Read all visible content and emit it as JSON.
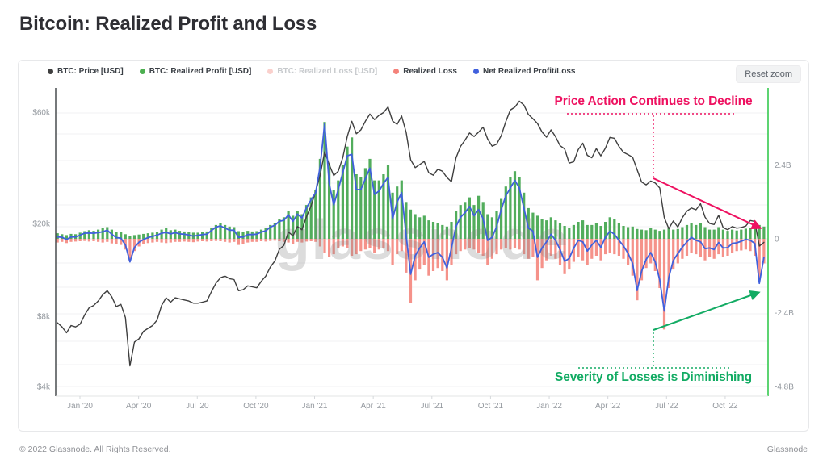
{
  "title": "Bitcoin: Realized Profit and Loss",
  "panel": {
    "reset_button_label": "Reset zoom"
  },
  "legend": {
    "items": [
      {
        "label": "BTC: Price [USD]",
        "color": "#3f3f3f",
        "disabled": false
      },
      {
        "label": "BTC: Realized Profit [USD]",
        "color": "#4caf50",
        "disabled": false
      },
      {
        "label": "BTC: Realized Loss [USD]",
        "color": "#f4978e",
        "disabled": true
      },
      {
        "label": "Realized Loss",
        "color": "#f4827a",
        "disabled": false
      },
      {
        "label": "Net Realized Profit/Loss",
        "color": "#4060dd",
        "disabled": false
      }
    ]
  },
  "annotations": {
    "price_decline": "Price Action Continues to Decline",
    "price_decline_color": "#ee1160",
    "losses_diminishing": "Severity of Losses is Diminishing",
    "losses_diminishing_color": "#12ab63"
  },
  "watermark": "glassnode",
  "footer": {
    "copyright": "© 2022 Glassnode. All Rights Reserved.",
    "brand": "Glassnode"
  },
  "colors": {
    "price_line": "#3f3f3f",
    "profit_bar": "#52ad5c",
    "loss_bar": "#f5928a",
    "net_line": "#4060dd",
    "right_axis": "#35c94f",
    "left_axis": "#3c4043",
    "grid": "#f1f1f3",
    "zero_line": "#e8e8ea",
    "tick_label": "#94999f"
  },
  "chart_data": {
    "type": "composite",
    "title": "Bitcoin: Realized Profit and Loss",
    "x": {
      "start_month": -1.15,
      "step_month": 0.2316,
      "count": 157,
      "unit": "weekly points, months offset from Jan 2020"
    },
    "x_ticks": [
      {
        "t": 0,
        "label": "Jan '20"
      },
      {
        "t": 3,
        "label": "Apr '20"
      },
      {
        "t": 6,
        "label": "Jul '20"
      },
      {
        "t": 9,
        "label": "Oct '20"
      },
      {
        "t": 12,
        "label": "Jan '21"
      },
      {
        "t": 15,
        "label": "Apr '21"
      },
      {
        "t": 18,
        "label": "Jul '21"
      },
      {
        "t": 21,
        "label": "Oct '21"
      },
      {
        "t": 24,
        "label": "Jan '22"
      },
      {
        "t": 27,
        "label": "Apr '22"
      },
      {
        "t": 30,
        "label": "Jul '22"
      },
      {
        "t": 33,
        "label": "Oct '22"
      }
    ],
    "y_left": {
      "scale": "log",
      "unit": "USD thousands",
      "ticks": [
        {
          "v": 60,
          "label": "$60k"
        },
        {
          "v": 20,
          "label": "$20k"
        },
        {
          "v": 8,
          "label": "$8k"
        },
        {
          "v": 4,
          "label": "$4k"
        }
      ]
    },
    "y_right": {
      "scale": "linear",
      "unit": "USD billions",
      "ticks": [
        {
          "v": 2.4,
          "label": "2.4B"
        },
        {
          "v": 0,
          "label": "0"
        },
        {
          "v": -2.4,
          "label": "-2.4B"
        },
        {
          "v": -4.8,
          "label": "-4.8B"
        }
      ]
    },
    "series": [
      {
        "name": "BTC: Price [USD]",
        "type": "line",
        "axis": "left",
        "color": "#3f3f3f",
        "values": [
          7.5,
          7.2,
          6.8,
          7.3,
          7.2,
          7.4,
          8.1,
          8.7,
          8.9,
          9.3,
          9.9,
          10.3,
          9.7,
          8.8,
          9.0,
          7.9,
          4.9,
          6.2,
          6.4,
          6.9,
          7.1,
          7.3,
          7.7,
          8.9,
          9.6,
          9.2,
          9.6,
          9.5,
          9.4,
          9.3,
          9.1,
          9.1,
          9.2,
          9.3,
          10.2,
          11.1,
          11.7,
          11.9,
          11.6,
          11.5,
          10.3,
          10.4,
          10.8,
          10.7,
          10.6,
          11.3,
          11.9,
          13.0,
          13.8,
          15.5,
          16.1,
          18.4,
          17.7,
          19.4,
          18.8,
          21.4,
          23.8,
          27.4,
          32.2,
          40.6,
          35.8,
          32.1,
          33.5,
          38.3,
          47.2,
          54.9,
          48.5,
          50.4,
          54.9,
          58.9,
          55.8,
          58.2,
          59.8,
          63.2,
          55.0,
          53.2,
          57.8,
          49.2,
          37.5,
          34.7,
          35.8,
          36.9,
          33.0,
          32.2,
          34.2,
          33.5,
          31.5,
          30.2,
          38.2,
          42.8,
          45.6,
          48.9,
          47.2,
          49.3,
          51.8,
          46.1,
          42.9,
          43.8,
          47.6,
          54.7,
          61.3,
          63.1,
          66.9,
          64.4,
          58.7,
          56.3,
          53.7,
          49.4,
          46.9,
          50.4,
          47.1,
          43.1,
          41.8,
          36.3,
          36.8,
          41.5,
          44.2,
          39.2,
          38.3,
          41.9,
          39.0,
          42.1,
          46.8,
          46.4,
          42.8,
          40.4,
          39.5,
          38.5,
          34.0,
          30.1,
          29.3,
          30.4,
          29.8,
          28.4,
          21.2,
          19.0,
          20.5,
          19.3,
          21.2,
          22.6,
          23.3,
          22.9,
          24.3,
          21.3,
          20.0,
          19.8,
          21.7,
          19.2,
          18.8,
          19.4,
          19.1,
          19.2,
          19.5,
          20.6,
          20.4,
          16.0,
          16.6
        ]
      },
      {
        "name": "BTC: Realized Profit [USD]",
        "type": "bar",
        "axis": "right",
        "color": "#52ad5c",
        "values": [
          0.18,
          0.15,
          0.12,
          0.16,
          0.15,
          0.2,
          0.25,
          0.28,
          0.26,
          0.3,
          0.35,
          0.38,
          0.3,
          0.22,
          0.22,
          0.15,
          0.1,
          0.12,
          0.14,
          0.16,
          0.18,
          0.2,
          0.22,
          0.3,
          0.35,
          0.28,
          0.3,
          0.26,
          0.24,
          0.22,
          0.2,
          0.2,
          0.22,
          0.24,
          0.35,
          0.45,
          0.5,
          0.45,
          0.4,
          0.38,
          0.25,
          0.22,
          0.26,
          0.24,
          0.25,
          0.3,
          0.35,
          0.45,
          0.5,
          0.65,
          0.7,
          0.9,
          0.75,
          0.9,
          0.8,
          1.1,
          1.35,
          1.6,
          2.6,
          3.8,
          2.4,
          1.6,
          1.9,
          2.4,
          3.0,
          3.3,
          2.1,
          2.0,
          2.3,
          2.6,
          1.9,
          1.9,
          2.1,
          2.4,
          1.5,
          1.7,
          1.9,
          1.2,
          0.95,
          0.8,
          0.7,
          0.75,
          0.6,
          0.55,
          0.5,
          0.45,
          0.4,
          0.55,
          0.9,
          1.1,
          1.2,
          1.35,
          1.1,
          1.4,
          1.2,
          0.8,
          0.7,
          0.9,
          1.3,
          1.7,
          2.0,
          2.2,
          2.0,
          1.5,
          1.0,
          0.85,
          0.75,
          0.65,
          0.6,
          0.7,
          0.6,
          0.5,
          0.42,
          0.36,
          0.45,
          0.55,
          0.6,
          0.45,
          0.45,
          0.5,
          0.42,
          0.55,
          0.7,
          0.65,
          0.5,
          0.42,
          0.38,
          0.4,
          0.32,
          0.3,
          0.28,
          0.35,
          0.3,
          0.26,
          0.3,
          0.35,
          0.3,
          0.32,
          0.38,
          0.45,
          0.5,
          0.45,
          0.5,
          0.38,
          0.3,
          0.3,
          0.38,
          0.3,
          0.26,
          0.3,
          0.27,
          0.3,
          0.33,
          0.35,
          0.4,
          0.45,
          0.4
        ]
      },
      {
        "name": "Realized Loss",
        "type": "bar",
        "axis": "right",
        "color": "#f5928a",
        "values": [
          -0.12,
          -0.1,
          -0.14,
          -0.1,
          -0.09,
          -0.08,
          -0.07,
          -0.09,
          -0.08,
          -0.1,
          -0.12,
          -0.1,
          -0.15,
          -0.18,
          -0.2,
          -0.35,
          -0.72,
          -0.4,
          -0.25,
          -0.18,
          -0.14,
          -0.12,
          -0.1,
          -0.12,
          -0.14,
          -0.12,
          -0.1,
          -0.1,
          -0.09,
          -0.1,
          -0.11,
          -0.09,
          -0.08,
          -0.09,
          -0.08,
          -0.07,
          -0.08,
          -0.1,
          -0.12,
          -0.1,
          -0.2,
          -0.16,
          -0.12,
          -0.1,
          -0.1,
          -0.08,
          -0.09,
          -0.07,
          -0.06,
          -0.08,
          -0.1,
          -0.12,
          -0.18,
          -0.1,
          -0.12,
          -0.09,
          -0.08,
          -0.1,
          -0.25,
          -0.45,
          -0.6,
          -0.5,
          -0.3,
          -0.25,
          -0.3,
          -0.55,
          -0.5,
          -0.4,
          -0.35,
          -0.3,
          -0.45,
          -0.35,
          -0.3,
          -0.4,
          -0.85,
          -0.5,
          -0.4,
          -1.1,
          -2.1,
          -1.35,
          -1.0,
          -0.85,
          -1.2,
          -1.05,
          -0.95,
          -1.05,
          -1.35,
          -0.85,
          -0.5,
          -0.4,
          -0.35,
          -0.3,
          -0.35,
          -0.45,
          -0.55,
          -0.85,
          -0.65,
          -0.5,
          -0.35,
          -0.3,
          -0.35,
          -0.3,
          -0.35,
          -0.5,
          -0.65,
          -0.6,
          -1.35,
          -0.95,
          -0.7,
          -0.55,
          -0.65,
          -0.85,
          -1.15,
          -1.0,
          -0.75,
          -0.6,
          -0.7,
          -0.85,
          -0.65,
          -0.55,
          -0.7,
          -0.5,
          -0.45,
          -0.5,
          -0.55,
          -0.65,
          -0.85,
          -1.2,
          -2.0,
          -1.35,
          -0.95,
          -0.8,
          -1.05,
          -1.6,
          -2.95,
          -1.6,
          -1.0,
          -0.8,
          -0.65,
          -0.55,
          -0.45,
          -0.5,
          -0.6,
          -0.7,
          -0.6,
          -0.65,
          -0.5,
          -0.6,
          -0.55,
          -0.45,
          -0.4,
          -0.38,
          -0.35,
          -0.4,
          -0.55,
          -1.3,
          -0.8
        ]
      },
      {
        "name": "Net Realized Profit/Loss",
        "type": "line",
        "axis": "right",
        "color": "#4060dd",
        "values": [
          0.06,
          0.05,
          -0.02,
          0.06,
          0.06,
          0.12,
          0.18,
          0.19,
          0.18,
          0.2,
          0.23,
          0.28,
          0.15,
          0.04,
          0.02,
          -0.2,
          -0.75,
          -0.28,
          -0.11,
          -0.02,
          0.04,
          0.08,
          0.12,
          0.18,
          0.21,
          0.16,
          0.2,
          0.16,
          0.15,
          0.12,
          0.09,
          0.11,
          0.14,
          0.15,
          0.27,
          0.38,
          0.42,
          0.35,
          0.28,
          0.28,
          0.05,
          0.06,
          0.14,
          0.14,
          0.15,
          0.22,
          0.26,
          0.38,
          0.44,
          0.57,
          0.6,
          0.78,
          0.57,
          0.8,
          0.68,
          1.01,
          1.27,
          1.5,
          2.35,
          3.75,
          1.8,
          1.1,
          1.6,
          2.15,
          2.7,
          2.75,
          1.6,
          1.6,
          1.95,
          2.3,
          1.45,
          1.55,
          1.8,
          2.0,
          0.65,
          1.2,
          1.5,
          0.1,
          -1.15,
          -0.55,
          -0.3,
          -0.1,
          -0.6,
          -0.5,
          -0.45,
          -0.6,
          -0.95,
          -0.3,
          0.4,
          0.7,
          0.85,
          1.05,
          0.75,
          0.95,
          0.65,
          -0.05,
          0.05,
          0.4,
          0.95,
          1.4,
          1.65,
          1.9,
          1.65,
          1.0,
          0.35,
          0.25,
          -0.6,
          -0.3,
          -0.1,
          0.15,
          -0.05,
          -0.35,
          -0.73,
          -0.64,
          -0.3,
          -0.05,
          -0.1,
          -0.4,
          -0.2,
          -0.05,
          -0.28,
          0.05,
          0.25,
          0.15,
          -0.05,
          -0.23,
          -0.47,
          -0.8,
          -1.68,
          -1.05,
          -0.67,
          -0.45,
          -0.75,
          -1.34,
          -2.35,
          -1.25,
          -0.7,
          -0.48,
          -0.27,
          -0.1,
          0.05,
          -0.05,
          -0.1,
          -0.32,
          -0.3,
          -0.35,
          -0.12,
          -0.3,
          -0.29,
          -0.15,
          -0.13,
          -0.08,
          -0.02,
          -0.05,
          -0.15,
          -1.45,
          -0.6
        ]
      }
    ]
  }
}
